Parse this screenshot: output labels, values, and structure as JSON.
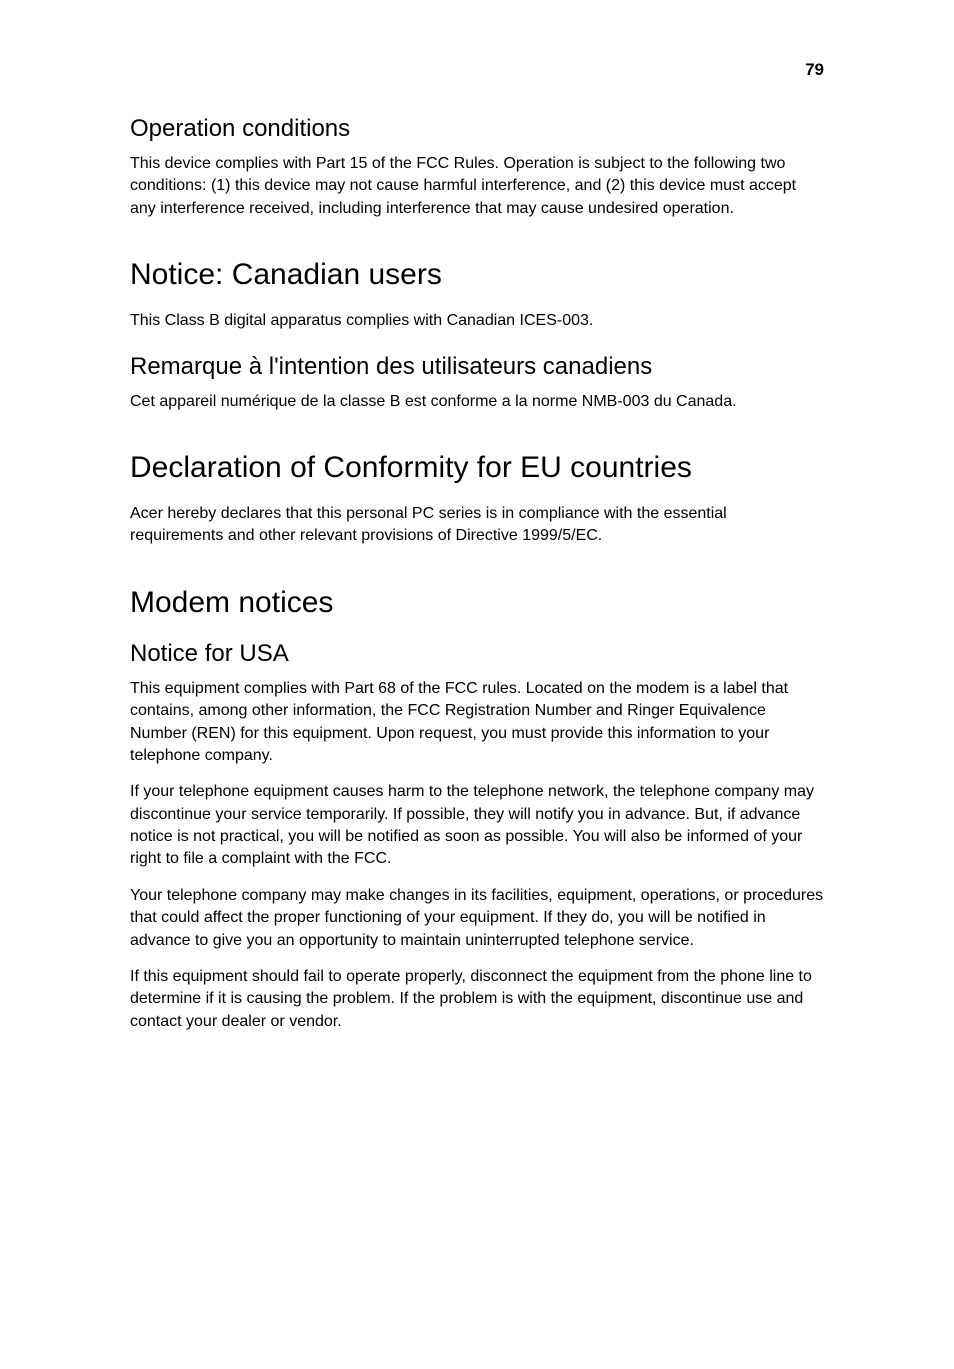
{
  "page_number": "79",
  "sections": {
    "operation_conditions": {
      "title": "Operation conditions",
      "body": "This device complies with Part 15 of the FCC Rules. Operation is subject to the following two conditions: (1) this device may not cause harmful interference, and (2) this device must accept any interference received, including interference that may cause undesired operation."
    },
    "canadian_users": {
      "title": "Notice: Canadian users",
      "body": "This Class B digital apparatus complies with Canadian ICES-003."
    },
    "remarque": {
      "title": "Remarque à l'intention des utilisateurs canadiens",
      "body": "Cet appareil numérique de la classe B est conforme a la norme NMB-003 du Canada."
    },
    "eu_declaration": {
      "title": "Declaration of Conformity for EU countries",
      "body": "Acer hereby declares that this personal PC series is in compliance with the essential requirements and other relevant provisions of Directive 1999/5/EC."
    },
    "modem_notices": {
      "title": "Modem notices"
    },
    "notice_usa": {
      "title": "Notice for USA",
      "p1": "This equipment complies with Part 68 of the FCC rules. Located on the modem is a label that contains, among other information, the FCC Registration Number and Ringer Equivalence Number (REN) for this equipment. Upon request, you must provide this information to your telephone company.",
      "p2": "If your telephone equipment causes harm to the telephone network, the telephone company may discontinue your service temporarily. If possible, they will notify you in advance. But, if advance notice is not practical, you will be notified as soon as possible. You will also be informed of your right to file a complaint with the FCC.",
      "p3": "Your telephone company may make changes in its facilities, equipment, operations, or procedures that could affect the proper functioning of your equipment. If they do, you will be notified in advance to give you an opportunity to maintain uninterrupted telephone service.",
      "p4": "If this equipment should fail to operate properly, disconnect the equipment from the phone line to determine if it is causing the problem. If the problem is with the equipment, discontinue use and contact your dealer or vendor."
    }
  },
  "typography": {
    "h1_fontsize": 30,
    "h2_fontsize": 24,
    "body_fontsize": 16,
    "pagenum_fontsize": 17,
    "text_color": "#000000",
    "background_color": "#ffffff"
  }
}
